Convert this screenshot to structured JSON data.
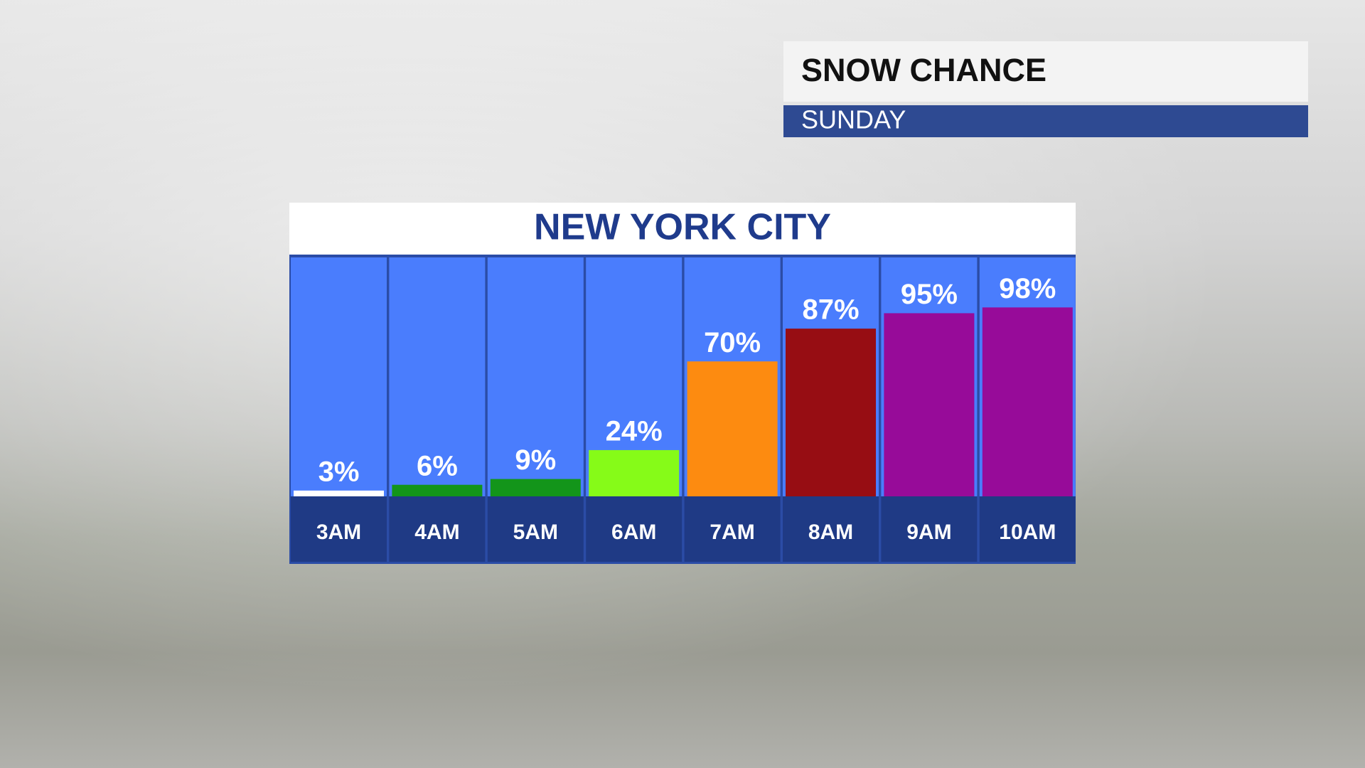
{
  "header": {
    "title": "SNOW CHANCE",
    "subtitle": "SUNDAY"
  },
  "chart_data": {
    "type": "bar",
    "title": "NEW YORK CITY",
    "categories": [
      "3AM",
      "4AM",
      "5AM",
      "6AM",
      "7AM",
      "8AM",
      "9AM",
      "10AM"
    ],
    "values": [
      3,
      6,
      9,
      24,
      70,
      87,
      95,
      98
    ],
    "value_labels": [
      "3%",
      "6%",
      "9%",
      "24%",
      "70%",
      "87%",
      "95%",
      "98%"
    ],
    "colors": [
      "#ffffff",
      "#13951a",
      "#13951a",
      "#86fb18",
      "#fd8b10",
      "#970d13",
      "#970b99",
      "#970b99"
    ]
  }
}
